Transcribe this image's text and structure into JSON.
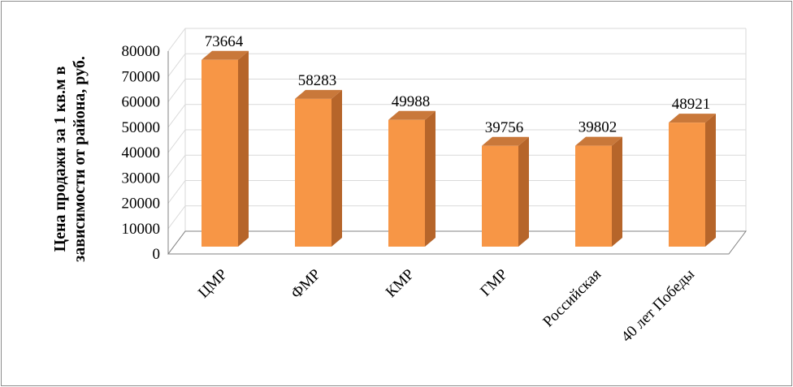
{
  "chart_data": {
    "type": "bar",
    "categories": [
      "ЦМР",
      "ФМР",
      "КМР",
      "ГМР",
      "Российская",
      "40 лет Победы"
    ],
    "values": [
      73664,
      58283,
      49988,
      39756,
      39802,
      48921
    ],
    "data_labels": [
      "73664",
      "58283",
      "49988",
      "39756",
      "39802",
      "48921"
    ],
    "ylabel_lines": [
      "Цена  продажи за 1 кв.м в",
      "зависимости от района,  руб."
    ],
    "ylim": [
      0,
      80000
    ],
    "yticks": [
      0,
      10000,
      20000,
      30000,
      40000,
      50000,
      60000,
      70000,
      80000
    ],
    "grid": true,
    "style": "3d-column",
    "colors": {
      "front": "#F79646",
      "side": "#B6652A",
      "top": "#C9783A",
      "grid": "#D9D9D9",
      "axis": "#808080"
    }
  }
}
